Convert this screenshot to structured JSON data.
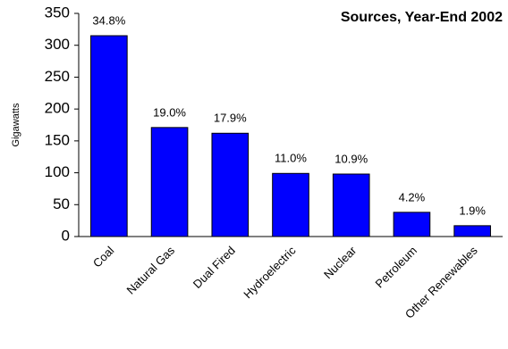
{
  "chart_data": {
    "type": "bar",
    "title": "Sources, Year-End 2002",
    "ylabel": "Gigawatts",
    "categories": [
      "Coal",
      "Natural Gas",
      "Dual Fired",
      "Hydroelectric",
      "Nuclear",
      "Petroleum",
      "Other Renewables"
    ],
    "values": [
      315,
      171,
      162,
      99,
      98,
      38,
      17
    ],
    "percent_labels": [
      "34.8%",
      "19.0%",
      "17.9%",
      "11.0%",
      "10.9%",
      "4.2%",
      "1.9%"
    ],
    "color": "#0000ff",
    "ylim": [
      0,
      350
    ],
    "yticks": [
      0,
      50,
      100,
      150,
      200,
      250,
      300,
      350
    ],
    "grid": false
  }
}
